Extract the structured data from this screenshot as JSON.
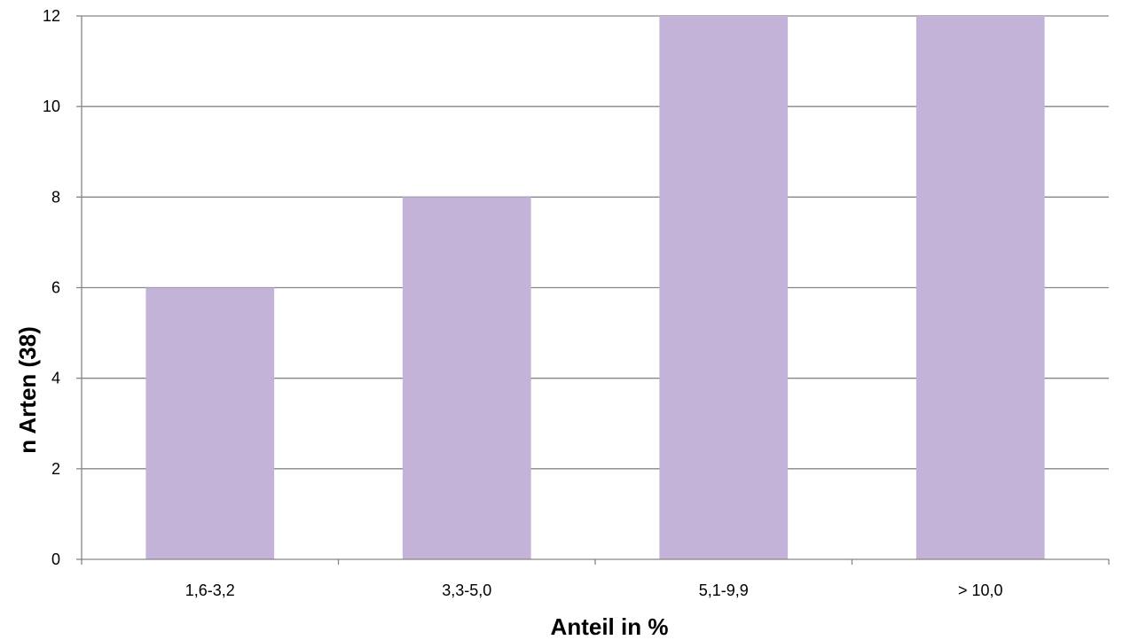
{
  "chart_data": {
    "type": "bar",
    "title": "",
    "xlabel": "Anteil in %",
    "ylabel": "n Arten (38)",
    "categories": [
      "1,6-3,2",
      "3,3-5,0",
      "5,1-9,9",
      "> 10,0"
    ],
    "values": [
      6,
      8,
      12,
      12
    ],
    "ylim": [
      0,
      12
    ],
    "yticks": [
      "0",
      "2",
      "4",
      "6",
      "8",
      "10",
      "12"
    ],
    "grid": "horizontal",
    "bar_color": "#c3b3d8",
    "grid_color": "#868686"
  }
}
